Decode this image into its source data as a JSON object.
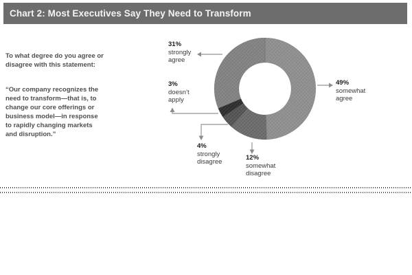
{
  "header": {
    "title": "Chart 2: Most Executives Say They Need to Transform"
  },
  "question": {
    "intro": "To what degree do you agree or\ndisagree with this statement:",
    "quote": "“Our company recognizes the\nneed to transform—that is, to\nchange our core offerings or\nbusiness model—in response\nto rapidly changing markets\nand disruption.”"
  },
  "chart_data": {
    "type": "pie",
    "subtype": "donut",
    "title": "Chart 2: Most Executives Say They Need to Transform",
    "start_angle_deg": 0,
    "direction": "clockwise",
    "legend_position": "callouts",
    "series": [
      {
        "label": "somewhat agree",
        "value": 49,
        "pct_label": "49%",
        "callout_lines": "somewhat\nagree",
        "color": "#8f8f8f"
      },
      {
        "label": "somewhat disagree",
        "value": 12,
        "pct_label": "12%",
        "callout_lines": "somewhat\ndisagree",
        "color": "#6b6b6b"
      },
      {
        "label": "strongly disagree",
        "value": 4,
        "pct_label": "4%",
        "callout_lines": "strongly\ndisagree",
        "color": "#545454"
      },
      {
        "label": "doesn't apply",
        "value": 3,
        "pct_label": "3%",
        "callout_lines": "doesn’t\napply",
        "color": "#2e2e2e"
      },
      {
        "label": "strongly agree",
        "value": 31,
        "pct_label": "31%",
        "callout_lines": "strongly\nagree",
        "color": "#828282"
      }
    ]
  }
}
